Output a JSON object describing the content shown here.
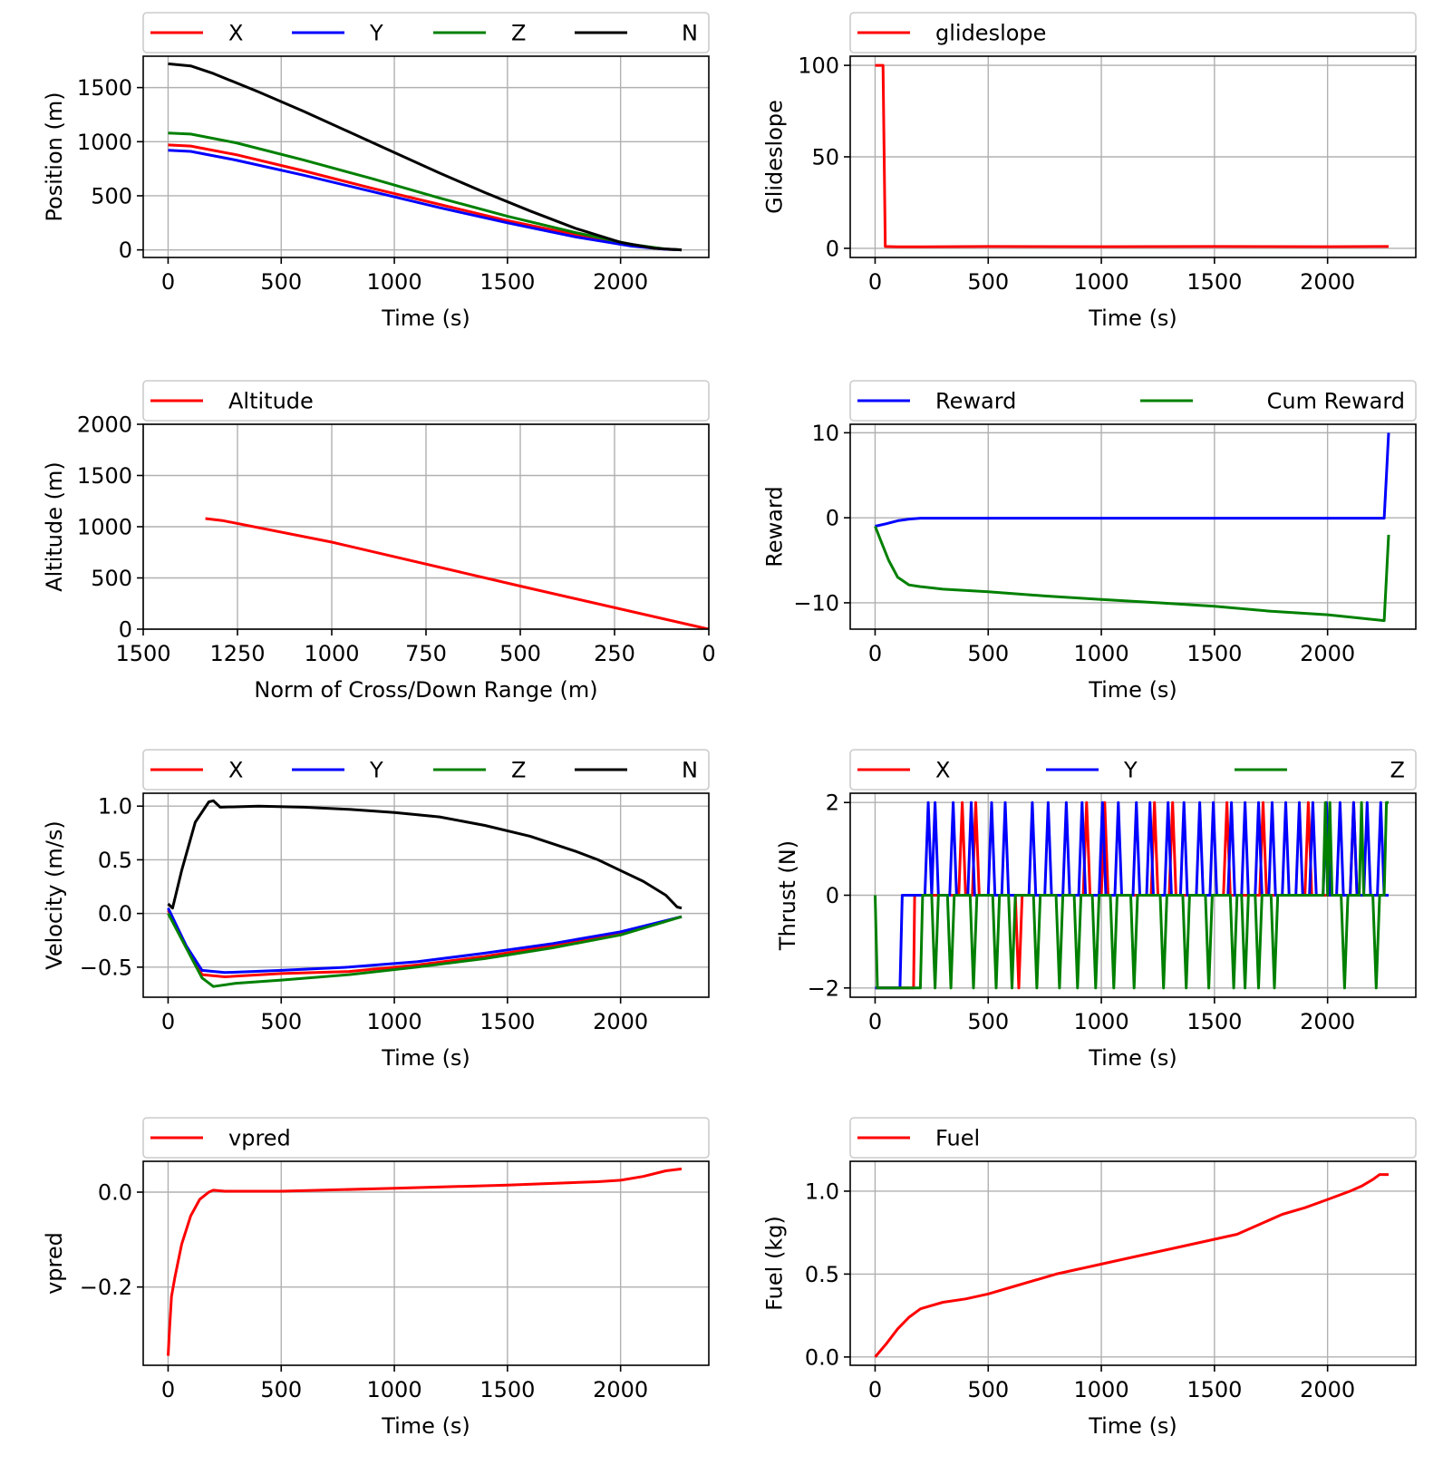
{
  "chart_data": [
    {
      "id": "position",
      "type": "line",
      "xlabel": "Time (s)",
      "ylabel": "Position (m)",
      "xlim": [
        -110,
        2390
      ],
      "ylim": [
        -70,
        1790
      ],
      "xticks": [
        0,
        500,
        1000,
        1500,
        2000
      ],
      "yticks": [
        0,
        500,
        1000,
        1500
      ],
      "legend": {
        "placement": "top",
        "ncol": 4
      },
      "series": [
        {
          "name": "X",
          "color": "#ff0000",
          "x": [
            0,
            100,
            300,
            600,
            900,
            1200,
            1500,
            1800,
            2050,
            2200,
            2270
          ],
          "y": [
            970,
            960,
            880,
            730,
            570,
            420,
            270,
            140,
            40,
            5,
            0
          ]
        },
        {
          "name": "Y",
          "color": "#0000ff",
          "x": [
            0,
            100,
            300,
            600,
            900,
            1200,
            1500,
            1800,
            2050,
            2200,
            2270
          ],
          "y": [
            920,
            910,
            830,
            690,
            540,
            390,
            250,
            120,
            35,
            5,
            0
          ]
        },
        {
          "name": "Z",
          "color": "#008000",
          "x": [
            0,
            100,
            300,
            600,
            900,
            1200,
            1500,
            1800,
            2050,
            2200,
            2270
          ],
          "y": [
            1080,
            1070,
            990,
            830,
            660,
            480,
            310,
            160,
            50,
            8,
            0
          ]
        },
        {
          "name": "N",
          "color": "#000000",
          "x": [
            0,
            100,
            200,
            400,
            600,
            800,
            1000,
            1200,
            1400,
            1600,
            1800,
            2000,
            2150,
            2270
          ],
          "y": [
            1720,
            1700,
            1630,
            1460,
            1280,
            1090,
            900,
            710,
            530,
            360,
            200,
            70,
            15,
            0
          ]
        }
      ]
    },
    {
      "id": "glideslope",
      "type": "line",
      "xlabel": "Time (s)",
      "ylabel": "Glideslope",
      "xlim": [
        -110,
        2390
      ],
      "ylim": [
        -5,
        105
      ],
      "xticks": [
        0,
        500,
        1000,
        1500,
        2000
      ],
      "yticks": [
        0,
        50,
        100
      ],
      "legend": {
        "placement": "top",
        "ncol": 1
      },
      "series": [
        {
          "name": "glideslope",
          "color": "#ff0000",
          "x": [
            0,
            35,
            45,
            100,
            500,
            1000,
            1500,
            2000,
            2270
          ],
          "y": [
            100,
            100,
            1,
            0.8,
            1,
            0.9,
            1,
            0.9,
            1
          ]
        }
      ]
    },
    {
      "id": "altitude",
      "type": "line",
      "xlabel": "Norm of Cross/Down Range  (m)",
      "ylabel": "Altitude (m)",
      "xlim": [
        1500,
        0
      ],
      "ylim": [
        0,
        2000
      ],
      "xticks": [
        1500,
        1250,
        1000,
        750,
        500,
        250,
        0
      ],
      "yticks": [
        0,
        500,
        1000,
        1500,
        2000
      ],
      "legend": {
        "placement": "top",
        "ncol": 1
      },
      "series": [
        {
          "name": "Altitude",
          "color": "#ff0000",
          "x": [
            1335,
            1290,
            1000,
            500,
            0
          ],
          "y": [
            1080,
            1060,
            850,
            420,
            0
          ]
        }
      ]
    },
    {
      "id": "reward",
      "type": "line",
      "xlabel": "Time (s)",
      "ylabel": "Reward",
      "xlim": [
        -110,
        2390
      ],
      "ylim": [
        -13.1,
        11
      ],
      "xticks": [
        0,
        500,
        1000,
        1500,
        2000
      ],
      "yticks": [
        -10,
        0,
        10
      ],
      "legend": {
        "placement": "top",
        "ncol": 2
      },
      "series": [
        {
          "name": "Reward",
          "color": "#0000ff",
          "x": [
            0,
            50,
            100,
            150,
            200,
            500,
            1000,
            1500,
            2000,
            2250,
            2260,
            2270
          ],
          "y": [
            -1,
            -0.7,
            -0.35,
            -0.15,
            -0.05,
            -0.05,
            -0.05,
            -0.05,
            -0.05,
            -0.05,
            5,
            10
          ]
        },
        {
          "name": "Cum Reward",
          "color": "#008000",
          "x": [
            0,
            30,
            60,
            100,
            150,
            200,
            300,
            500,
            750,
            1000,
            1250,
            1500,
            1750,
            2000,
            2250,
            2260,
            2270
          ],
          "y": [
            -1,
            -3,
            -5,
            -7,
            -7.9,
            -8.1,
            -8.4,
            -8.7,
            -9.2,
            -9.6,
            -10,
            -10.4,
            -11,
            -11.4,
            -12.1,
            -7,
            -2
          ]
        }
      ]
    },
    {
      "id": "velocity",
      "type": "line",
      "xlabel": "Time (s)",
      "ylabel": "Velocity (m/s)",
      "xlim": [
        -110,
        2390
      ],
      "ylim": [
        -0.78,
        1.12
      ],
      "xticks": [
        0,
        500,
        1000,
        1500,
        2000
      ],
      "yticks": [
        -0.5,
        0.0,
        0.5,
        1.0
      ],
      "legend": {
        "placement": "top",
        "ncol": 4
      },
      "series": [
        {
          "name": "X",
          "color": "#ff0000",
          "x": [
            0,
            80,
            150,
            250,
            500,
            800,
            1100,
            1400,
            1700,
            2000,
            2270
          ],
          "y": [
            0.03,
            -0.3,
            -0.57,
            -0.59,
            -0.56,
            -0.54,
            -0.48,
            -0.4,
            -0.3,
            -0.18,
            -0.03
          ]
        },
        {
          "name": "Y",
          "color": "#0000ff",
          "x": [
            0,
            80,
            150,
            250,
            500,
            800,
            1100,
            1400,
            1700,
            2000,
            2270
          ],
          "y": [
            0.05,
            -0.3,
            -0.53,
            -0.55,
            -0.53,
            -0.5,
            -0.45,
            -0.37,
            -0.28,
            -0.17,
            -0.03
          ]
        },
        {
          "name": "Z",
          "color": "#008000",
          "x": [
            0,
            100,
            150,
            200,
            300,
            500,
            800,
            1100,
            1400,
            1700,
            2000,
            2270
          ],
          "y": [
            0,
            -0.4,
            -0.6,
            -0.68,
            -0.65,
            -0.62,
            -0.57,
            -0.5,
            -0.42,
            -0.32,
            -0.2,
            -0.03
          ]
        },
        {
          "name": "N",
          "color": "#000000",
          "x": [
            0,
            20,
            60,
            120,
            180,
            200,
            230,
            400,
            600,
            800,
            1000,
            1200,
            1400,
            1600,
            1800,
            1900,
            2000,
            2100,
            2200,
            2250,
            2270
          ],
          "y": [
            0.09,
            0.05,
            0.4,
            0.85,
            1.04,
            1.05,
            0.99,
            1.0,
            0.99,
            0.97,
            0.94,
            0.9,
            0.82,
            0.72,
            0.58,
            0.5,
            0.4,
            0.3,
            0.17,
            0.06,
            0.05
          ]
        }
      ]
    },
    {
      "id": "thrust",
      "type": "line",
      "xlabel": "Time (s)",
      "ylabel": "Thrust (N)",
      "xlim": [
        -110,
        2390
      ],
      "ylim": [
        -2.2,
        2.2
      ],
      "xticks": [
        0,
        500,
        1000,
        1500,
        2000
      ],
      "yticks": [
        -2,
        0,
        2
      ],
      "legend": {
        "placement": "top",
        "ncol": 3
      },
      "series": [
        {
          "name": "X",
          "color": "#ff0000",
          "x": [
            0,
            170,
            175,
            185,
            370,
            385,
            400,
            430,
            445,
            460,
            620,
            635,
            650,
            920,
            935,
            950,
            1000,
            1015,
            1030,
            1220,
            1235,
            1250,
            1300,
            1315,
            1330,
            1540,
            1555,
            1570,
            1700,
            1715,
            1730,
            1900,
            1915,
            1930,
            2100,
            2115,
            2130,
            2270
          ],
          "y": [
            -2,
            -2,
            0,
            0,
            0,
            2,
            0,
            0,
            2,
            0,
            0,
            -2,
            0,
            0,
            2,
            0,
            0,
            2,
            0,
            0,
            2,
            0,
            0,
            2,
            0,
            0,
            2,
            0,
            0,
            2,
            0,
            0,
            2,
            0,
            0,
            2,
            0,
            0
          ]
        },
        {
          "name": "Y",
          "color": "#0000ff",
          "x": [
            0,
            110,
            120,
            220,
            235,
            250,
            265,
            280,
            300,
            330,
            345,
            360,
            410,
            425,
            440,
            500,
            515,
            530,
            560,
            575,
            590,
            680,
            695,
            710,
            750,
            765,
            780,
            830,
            845,
            860,
            900,
            915,
            930,
            990,
            1005,
            1020,
            1060,
            1075,
            1090,
            1140,
            1155,
            1170,
            1200,
            1215,
            1230,
            1280,
            1295,
            1310,
            1350,
            1365,
            1380,
            1420,
            1435,
            1450,
            1480,
            1495,
            1510,
            1560,
            1575,
            1590,
            1620,
            1635,
            1650,
            1680,
            1695,
            1710,
            1740,
            1755,
            1770,
            1800,
            1815,
            1830,
            1860,
            1875,
            1890,
            1920,
            1935,
            1950,
            1980,
            1995,
            2010,
            2040,
            2055,
            2070,
            2100,
            2115,
            2130,
            2160,
            2175,
            2190,
            2220,
            2235,
            2250,
            2270
          ],
          "y": [
            -2,
            -2,
            0,
            0,
            2,
            0,
            2,
            0,
            0,
            0,
            2,
            0,
            0,
            2,
            0,
            0,
            2,
            0,
            0,
            2,
            0,
            0,
            2,
            0,
            0,
            2,
            0,
            0,
            2,
            0,
            0,
            2,
            0,
            0,
            2,
            0,
            0,
            2,
            0,
            0,
            2,
            0,
            0,
            2,
            0,
            0,
            2,
            0,
            0,
            2,
            0,
            0,
            2,
            0,
            0,
            2,
            0,
            0,
            2,
            0,
            0,
            2,
            0,
            0,
            2,
            0,
            0,
            2,
            0,
            0,
            2,
            0,
            0,
            2,
            0,
            0,
            2,
            0,
            0,
            2,
            0,
            0,
            2,
            0,
            0,
            2,
            0,
            0,
            2,
            0,
            0,
            2,
            0,
            0
          ]
        },
        {
          "name": "Z",
          "color": "#008000",
          "x": [
            0,
            10,
            20,
            200,
            210,
            250,
            265,
            280,
            320,
            335,
            350,
            420,
            435,
            450,
            520,
            535,
            550,
            590,
            605,
            620,
            700,
            715,
            730,
            800,
            815,
            830,
            880,
            895,
            910,
            960,
            975,
            990,
            1040,
            1055,
            1070,
            1130,
            1145,
            1160,
            1260,
            1275,
            1290,
            1360,
            1375,
            1390,
            1460,
            1475,
            1490,
            1570,
            1585,
            1600,
            1620,
            1635,
            1650,
            1680,
            1695,
            1710,
            1750,
            1765,
            1780,
            1980,
            1990,
            2000,
            2010,
            2020,
            2030,
            2060,
            2075,
            2090,
            2140,
            2150,
            2160,
            2200,
            2215,
            2230,
            2250,
            2260,
            2270
          ],
          "y": [
            0,
            -2,
            -2,
            -2,
            0,
            0,
            -2,
            0,
            0,
            -2,
            0,
            0,
            -2,
            0,
            0,
            -2,
            0,
            0,
            -2,
            0,
            0,
            -2,
            0,
            0,
            -2,
            0,
            0,
            -2,
            0,
            0,
            -2,
            0,
            0,
            -2,
            0,
            0,
            -2,
            0,
            0,
            -2,
            0,
            0,
            -2,
            0,
            0,
            -2,
            0,
            0,
            -2,
            0,
            0,
            -2,
            0,
            0,
            -2,
            0,
            0,
            -2,
            0,
            0,
            2,
            0,
            2,
            0,
            0,
            0,
            -2,
            0,
            0,
            2,
            0,
            0,
            -2,
            0,
            0,
            2,
            2
          ]
        }
      ]
    },
    {
      "id": "vpred",
      "type": "line",
      "xlabel": "Time (s)",
      "ylabel": "vpred",
      "xlim": [
        -110,
        2390
      ],
      "ylim": [
        -0.365,
        0.065
      ],
      "xticks": [
        0,
        500,
        1000,
        1500,
        2000
      ],
      "yticks": [
        -0.2,
        0.0
      ],
      "legend": {
        "placement": "top",
        "ncol": 1
      },
      "series": [
        {
          "name": "vpred",
          "color": "#ff0000",
          "x": [
            0,
            5,
            15,
            30,
            60,
            100,
            140,
            180,
            200,
            250,
            500,
            1000,
            1500,
            1900,
            2000,
            2100,
            2200,
            2270
          ],
          "y": [
            -0.345,
            -0.3,
            -0.22,
            -0.18,
            -0.11,
            -0.05,
            -0.015,
            0.0,
            0.004,
            0.002,
            0.002,
            0.008,
            0.015,
            0.022,
            0.025,
            0.033,
            0.045,
            0.049
          ]
        }
      ]
    },
    {
      "id": "fuel",
      "type": "line",
      "xlabel": "Time (s)",
      "ylabel": "Fuel (kg)",
      "xlim": [
        -110,
        2390
      ],
      "ylim": [
        -0.05,
        1.18
      ],
      "xticks": [
        0,
        500,
        1000,
        1500,
        2000
      ],
      "yticks": [
        0.0,
        0.5,
        1.0
      ],
      "legend": {
        "placement": "top",
        "ncol": 1
      },
      "series": [
        {
          "name": "Fuel",
          "color": "#ff0000",
          "x": [
            0,
            50,
            100,
            150,
            200,
            250,
            300,
            400,
            500,
            600,
            700,
            800,
            900,
            1000,
            1100,
            1200,
            1300,
            1400,
            1500,
            1600,
            1700,
            1800,
            1900,
            2000,
            2100,
            2150,
            2200,
            2230,
            2270
          ],
          "y": [
            0.0,
            0.08,
            0.17,
            0.24,
            0.29,
            0.31,
            0.33,
            0.35,
            0.38,
            0.42,
            0.46,
            0.5,
            0.53,
            0.56,
            0.59,
            0.62,
            0.65,
            0.68,
            0.71,
            0.74,
            0.8,
            0.86,
            0.9,
            0.95,
            1.0,
            1.03,
            1.07,
            1.1,
            1.1
          ]
        }
      ]
    }
  ]
}
